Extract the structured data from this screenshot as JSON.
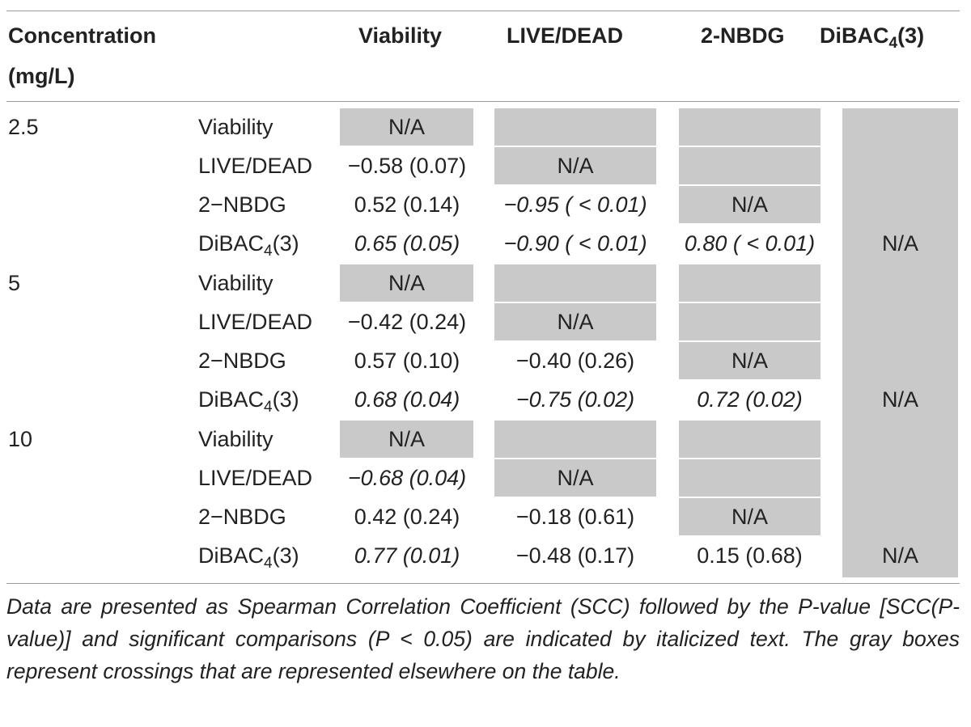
{
  "table": {
    "headers": {
      "concentration": "Concentration",
      "concentration_unit": "(mg/L)",
      "col_viability": "Viability",
      "col_livedead": "LIVE/DEAD",
      "col_nbdg": "2-NBDG",
      "col_dibac_main": "DiBAC",
      "col_dibac_sub": "4",
      "col_dibac_tail": "(3)"
    },
    "row_labels": {
      "viability": "Viability",
      "livedead": "LIVE/DEAD",
      "nbdg": "2−NBDG",
      "dibac_main": "DiBAC",
      "dibac_sub": "4",
      "dibac_tail": "(3)"
    },
    "na": "N/A",
    "groups": [
      {
        "concentration": "2.5",
        "livedead_viability": "−0.58 (0.07)",
        "nbdg_viability": "0.52 (0.14)",
        "nbdg_livedead": "−0.95 ( < 0.01)",
        "dibac_viability": "0.65 (0.05)",
        "dibac_livedead": "−0.90 ( < 0.01)",
        "dibac_nbdg": "0.80 ( < 0.01)"
      },
      {
        "concentration": "5",
        "livedead_viability": "−0.42 (0.24)",
        "nbdg_viability": "0.57 (0.10)",
        "nbdg_livedead": "−0.40 (0.26)",
        "dibac_viability": "0.68 (0.04)",
        "dibac_livedead": "−0.75 (0.02)",
        "dibac_nbdg": "0.72 (0.02)"
      },
      {
        "concentration": "10",
        "livedead_viability": "−0.68 (0.04)",
        "nbdg_viability": "0.42 (0.24)",
        "nbdg_livedead": "−0.18 (0.61)",
        "dibac_viability": "0.77 (0.01)",
        "dibac_livedead": "−0.48 (0.17)",
        "dibac_nbdg": "0.15 (0.68)"
      }
    ],
    "caption": "Data are presented as Spearman Correlation Coefficient (SCC) followed by the P-value [SCC(P-value)] and significant comparisons (P < 0.05) are indicated by italicized text. The gray boxes represent crossings that are represented elsewhere on the table."
  }
}
